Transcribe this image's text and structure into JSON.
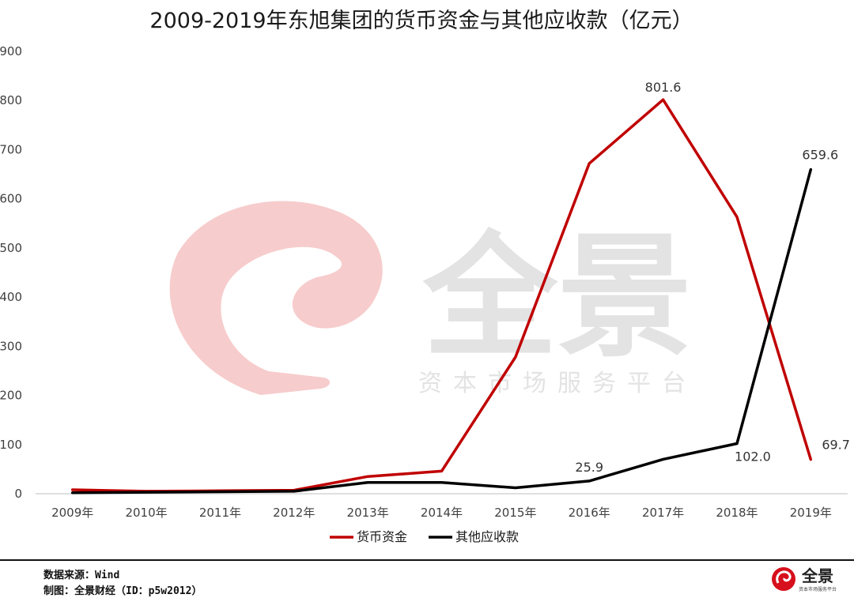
{
  "chart_data": {
    "type": "line",
    "title": "2009-2019年东旭集团的货币资金与其他应收款（亿元）",
    "categories": [
      "2009年",
      "2010年",
      "2011年",
      "2012年",
      "2013年",
      "2014年",
      "2015年",
      "2016年",
      "2017年",
      "2018年",
      "2019年"
    ],
    "ylim": [
      0,
      900
    ],
    "yticks": [
      0,
      100,
      200,
      300,
      400,
      500,
      600,
      700,
      800,
      900
    ],
    "grid": false,
    "legend_position": "bottom",
    "series": [
      {
        "name": "货币资金",
        "color": "#c00000",
        "values": [
          8,
          5,
          6,
          7,
          35,
          46,
          278,
          672,
          801.6,
          563,
          69.7
        ],
        "labels": {
          "8": "801.6",
          "10": "69.7"
        }
      },
      {
        "name": "其他应收款",
        "color": "#000000",
        "values": [
          2,
          3,
          4,
          5,
          23,
          23,
          12,
          25.9,
          70,
          102.0,
          659.6
        ],
        "labels": {
          "7": "25.9",
          "9": "102.0",
          "10": "659.6"
        }
      }
    ]
  },
  "watermark": {
    "brand": "全景",
    "tagline": "资本市场服务平台"
  },
  "footer": {
    "source": "数据来源：Wind",
    "maker": "制图：全景财经（ID：p5w2012）",
    "logo_text": "全景",
    "logo_tagline": "资本市场服务平台"
  }
}
